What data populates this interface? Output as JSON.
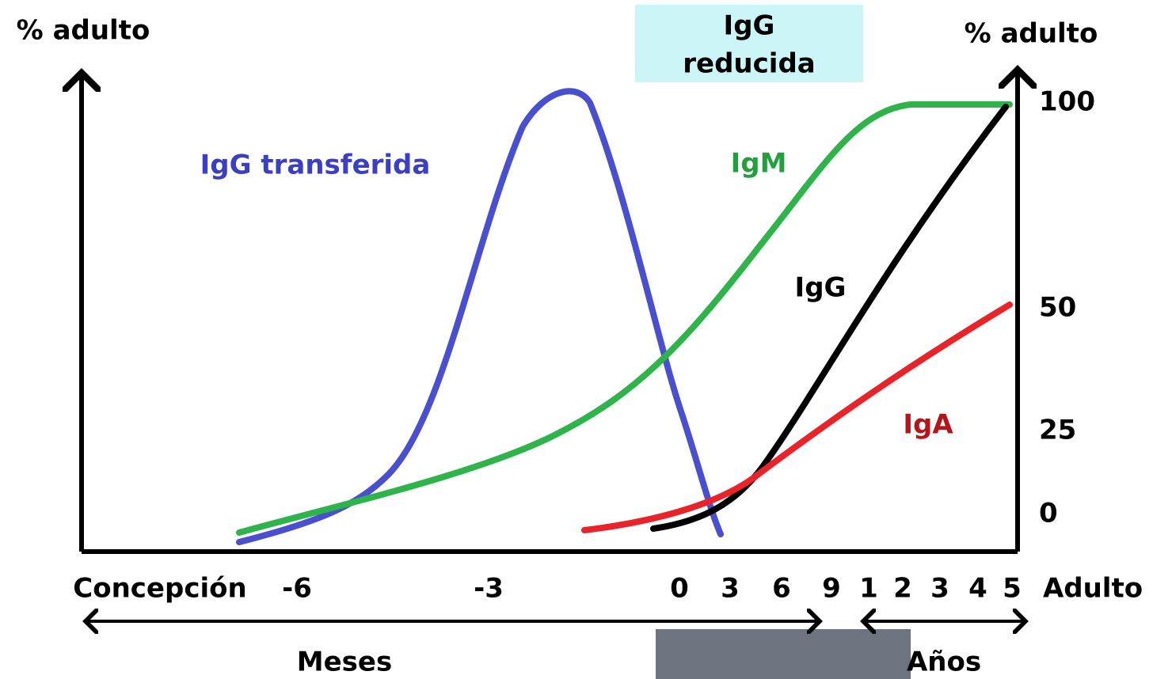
{
  "axes": {
    "left_label": "% adulto",
    "right_label": "% adulto",
    "right_ticks": [
      "100",
      "50",
      "25",
      "0"
    ],
    "x_labels": [
      "Concepción",
      "-6",
      "-3",
      "0",
      "3",
      "6",
      "9",
      "1",
      "2",
      "3",
      "4",
      "5",
      "Adulto"
    ],
    "ranges": [
      "Meses",
      "Años"
    ]
  },
  "highlight": {
    "lines": [
      "IgG",
      "reducida"
    ]
  },
  "curves": {
    "transferred": "IgG transferida",
    "igm": "IgM",
    "igg": "IgG",
    "iga": "IgA"
  }
}
